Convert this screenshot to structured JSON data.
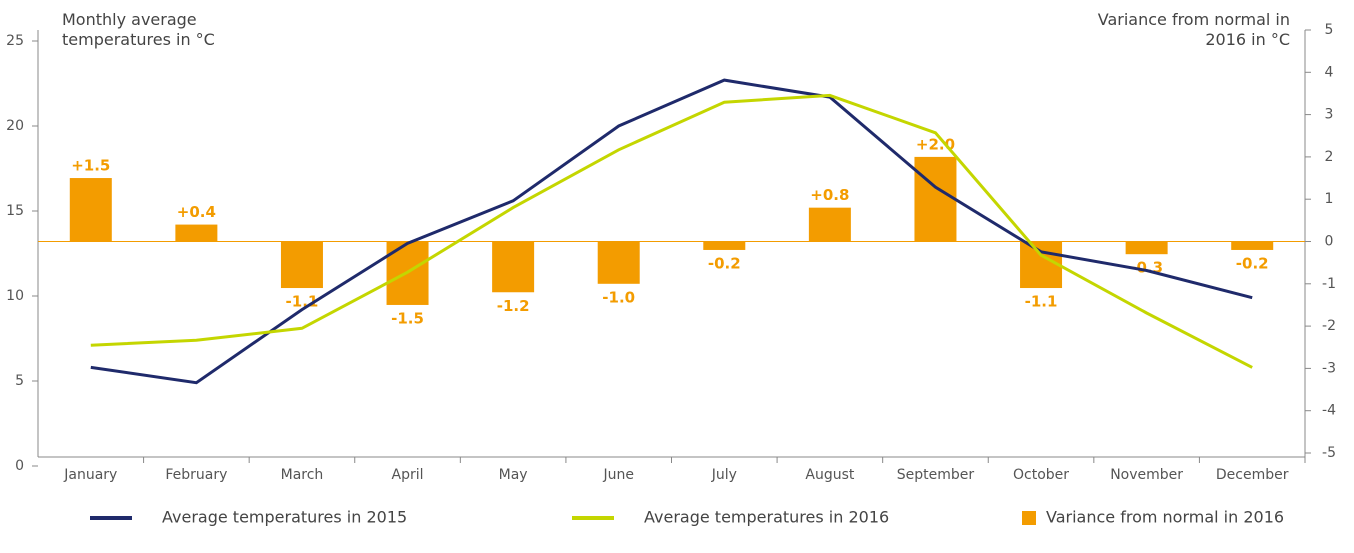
{
  "chart_data": {
    "type": "bar-line",
    "y_label": "Monthly average temperatures in °C",
    "y2_label": "Variance from normal in 2016 in °C",
    "categories": [
      "January",
      "February",
      "March",
      "April",
      "May",
      "June",
      "July",
      "August",
      "September",
      "October",
      "November",
      "December"
    ],
    "ylim": [
      0,
      25
    ],
    "yticks": [
      0,
      5,
      10,
      15,
      20,
      25
    ],
    "y2lim": [
      -5,
      5
    ],
    "y2ticks": [
      -5,
      -4,
      -3,
      -2,
      -1,
      0,
      1,
      2,
      3,
      4,
      5
    ],
    "series": [
      {
        "name": "Average temperatures in 2015",
        "type": "line",
        "color": "#1f2a6b",
        "values": [
          5.8,
          4.9,
          9.2,
          13.1,
          15.6,
          20.0,
          22.7,
          21.7,
          16.4,
          12.6,
          11.5,
          9.9
        ]
      },
      {
        "name": "Average temperatures in 2016",
        "type": "line",
        "color": "#c4d600",
        "values": [
          7.1,
          7.4,
          8.1,
          11.4,
          15.2,
          18.6,
          21.4,
          21.8,
          19.6,
          12.4,
          9.0,
          5.8
        ]
      },
      {
        "name": "Variance from normal in 2016",
        "type": "bar",
        "axis": "y2",
        "color": "#f39c00",
        "values": [
          1.5,
          0.4,
          -1.1,
          -1.5,
          -1.2,
          -1.0,
          -0.2,
          0.8,
          2.0,
          -1.1,
          -0.3,
          -0.2
        ],
        "value_labels": [
          "+1.5",
          "+0.4",
          "-1.1",
          "-1.5",
          "-1.2",
          "-1.0",
          "-0.2",
          "+0.8",
          "+2.0",
          "-1.1",
          "-0.3",
          "-0.2"
        ]
      }
    ]
  }
}
